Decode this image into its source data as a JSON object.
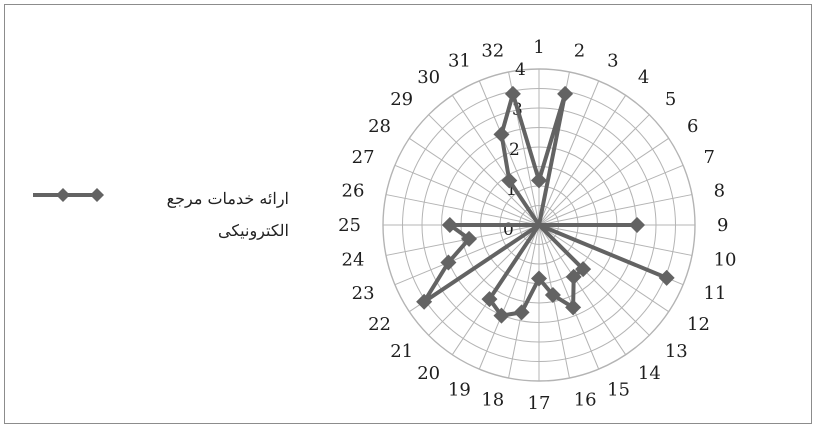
{
  "chart_data": {
    "type": "radar",
    "categories": [
      "1",
      "2",
      "3",
      "4",
      "5",
      "6",
      "7",
      "8",
      "9",
      "10",
      "11",
      "12",
      "13",
      "14",
      "15",
      "16",
      "17",
      "18",
      "19",
      "20",
      "21",
      "22",
      "23",
      "24",
      "25",
      "26",
      "27",
      "28",
      "29",
      "30",
      "31",
      "32"
    ],
    "series": [
      {
        "name": "ارائه خدمات مرجع الکترونیکی",
        "values": [
          1,
          3,
          0,
          0,
          0,
          0,
          0,
          0,
          2.2,
          0,
          3.1,
          0,
          1.4,
          1.4,
          2,
          1.6,
          1.2,
          2,
          2.2,
          2,
          0,
          3.1,
          2.2,
          1.6,
          2,
          0,
          0,
          0,
          0,
          1.2,
          2.2,
          3
        ]
      }
    ],
    "rlim": [
      0,
      3.5
    ],
    "tick_labels": [
      "0",
      "1",
      "2",
      "3",
      "4"
    ],
    "grid": true,
    "legend": "left",
    "colors": {
      "series": "#636363",
      "grid": "#b4b4b4",
      "text": "#1e1e1e"
    }
  },
  "legend": {
    "line1": "ارائه خدمات مرجع",
    "line2": "الکترونیکی"
  }
}
